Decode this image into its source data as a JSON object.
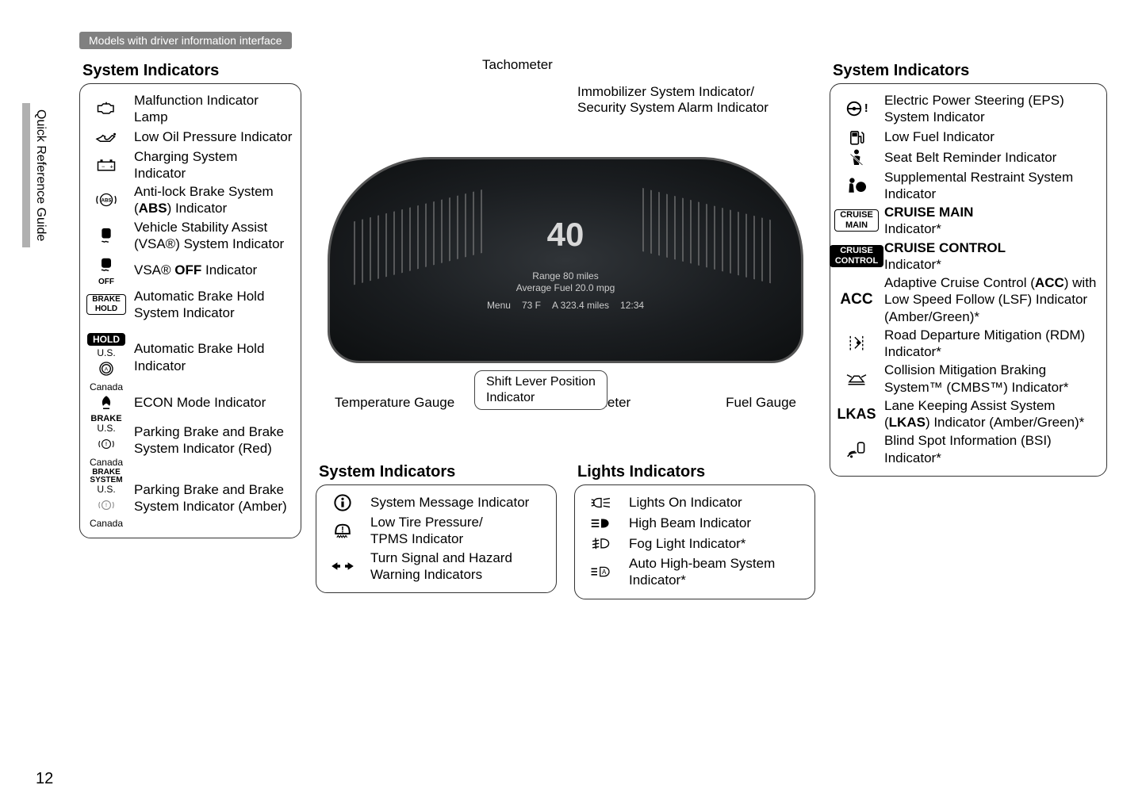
{
  "meta": {
    "side_tab": "Quick Reference Guide",
    "page_number": "12",
    "model_tag": "Models with driver information interface"
  },
  "left": {
    "title": "System Indicators",
    "items": [
      {
        "icon": "engine",
        "label": "Malfunction Indicator Lamp"
      },
      {
        "icon": "oil",
        "label": "Low Oil Pressure Indicator"
      },
      {
        "icon": "battery",
        "label": "Charging System Indicator"
      },
      {
        "icon": "abs",
        "label": "Anti-lock Brake System (ABS) Indicator",
        "bold_fragment": "ABS"
      },
      {
        "icon": "vsa",
        "label": "Vehicle Stability Assist (VSA®) System Indicator"
      },
      {
        "icon": "vsaoff",
        "label": "VSA® OFF Indicator",
        "bold_fragment": "OFF"
      },
      {
        "icon": "brakehold",
        "label": "Automatic Brake Hold System Indicator"
      },
      {
        "icon": "hold",
        "label": "Automatic Brake Hold Indicator"
      },
      {
        "icon": "econ",
        "label": "ECON Mode Indicator"
      },
      {
        "icon": "brake_red",
        "label": "Parking Brake and Brake System Indicator (Red)"
      },
      {
        "icon": "brake_amber",
        "label": "Parking Brake and Brake System Indicator (Amber)"
      }
    ]
  },
  "center": {
    "callouts_top": {
      "tach": "Tachometer",
      "immobilizer": "Immobilizer System Indicator/\nSecurity System Alarm Indicator"
    },
    "gauge": {
      "speed": "40",
      "range": "Range",
      "range_val": "80 miles",
      "avg": "Average Fuel",
      "avg_val": "20.0 mpg",
      "menu": "Menu",
      "temp_out": "73 F",
      "trip": "A 323.4 miles",
      "clock": "12:34"
    },
    "pointer_label": "Shift Lever Position\nIndicator",
    "below": {
      "temp": "Temperature Gauge",
      "speed": "Speedometer",
      "fuel": "Fuel Gauge"
    },
    "sys2": {
      "title": "System Indicators",
      "items": [
        {
          "icon": "info",
          "label": "System Message Indicator"
        },
        {
          "icon": "tpms",
          "label": "Low Tire Pressure/\nTPMS Indicator"
        },
        {
          "icon": "turn",
          "label": "Turn Signal and Hazard Warning Indicators"
        }
      ]
    },
    "lights": {
      "title": "Lights Indicators",
      "items": [
        {
          "icon": "lights_on",
          "label": "Lights On Indicator"
        },
        {
          "icon": "high_beam",
          "label": "High Beam Indicator"
        },
        {
          "icon": "fog",
          "label": "Fog Light Indicator*"
        },
        {
          "icon": "auto_hb",
          "label": "Auto High-beam System Indicator*"
        }
      ]
    }
  },
  "right": {
    "title": "System Indicators",
    "items": [
      {
        "icon": "eps",
        "label": "Electric Power Steering (EPS) System Indicator"
      },
      {
        "icon": "low_fuel",
        "label": "Low Fuel Indicator"
      },
      {
        "icon": "seatbelt",
        "label": "Seat Belt Reminder Indicator"
      },
      {
        "icon": "srs",
        "label": "Supplemental Restraint System Indicator"
      },
      {
        "icon": "cruise_main",
        "label": "CRUISE MAIN Indicator*",
        "bold_prefix": "CRUISE MAIN"
      },
      {
        "icon": "cruise_ctrl",
        "label": "CRUISE CONTROL Indicator*",
        "bold_prefix": "CRUISE CONTROL"
      },
      {
        "icon": "acc",
        "label": "Adaptive Cruise Control (ACC) with Low Speed Follow (LSF) Indicator (Amber/Green)*",
        "bold_fragment": "ACC"
      },
      {
        "icon": "rdm",
        "label": "Road Departure Mitigation (RDM) Indicator*"
      },
      {
        "icon": "cmbs",
        "label": "Collision Mitigation Braking System™ (CMBS™) Indicator*"
      },
      {
        "icon": "lkas",
        "label": "Lane Keeping Assist System (LKAS) Indicator (Amber/Green)*",
        "bold_fragment": "LKAS"
      },
      {
        "icon": "bsi",
        "label": "Blind Spot Information (BSI) Indicator*"
      }
    ]
  },
  "icon_labels": {
    "hold_us": "U.S.",
    "hold_ca": "Canada",
    "brake_us": "U.S.",
    "brake_ca": "Canada",
    "brakehold_badge": "BRAKE\nHOLD",
    "hold_badge": "HOLD",
    "brake_text": "BRAKE",
    "brake_sys": "BRAKE\nSYSTEM",
    "abs": "ABS",
    "vsa_off": "OFF",
    "cruise_main": "CRUISE\nMAIN",
    "cruise_ctrl": "CRUISE\nCONTROL",
    "acc": "ACC",
    "lkas": "LKAS"
  }
}
